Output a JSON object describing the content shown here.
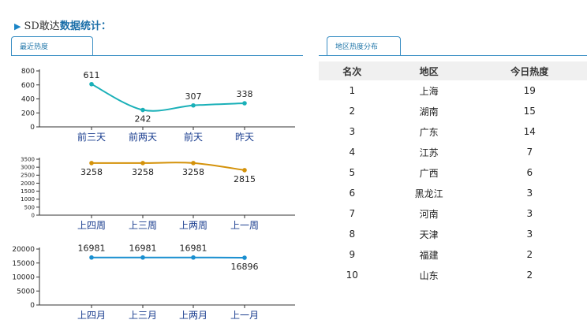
{
  "header": {
    "prefix": "SD敢达",
    "title": "数据统计："
  },
  "tabs": {
    "left": "最近热度",
    "right": "地区热度分布"
  },
  "charts": [
    {
      "type": "line",
      "color": "#1ab0b8",
      "y_ticks": [
        0,
        200,
        400,
        600,
        800
      ],
      "ylim": [
        0,
        800
      ],
      "categories": [
        "前三天",
        "前两天",
        "前天",
        "昨天"
      ],
      "values": [
        611,
        242,
        307,
        338
      ]
    },
    {
      "type": "line",
      "color": "#d4920a",
      "y_ticks": [
        0,
        500,
        1000,
        1500,
        2000,
        2500,
        3000,
        3500
      ],
      "ylim": [
        0,
        3500
      ],
      "categories": [
        "上四周",
        "上三周",
        "上两周",
        "上一周"
      ],
      "values": [
        3258,
        3258,
        3258,
        2815
      ]
    },
    {
      "type": "line",
      "color": "#1a8fd0",
      "y_ticks": [
        0,
        5000,
        10000,
        15000,
        20000
      ],
      "ylim": [
        0,
        20000
      ],
      "categories": [
        "上四月",
        "上三月",
        "上两月",
        "上一月"
      ],
      "values": [
        16981,
        16981,
        16981,
        16896
      ]
    }
  ],
  "ranking": {
    "headers": [
      "名次",
      "地区",
      "今日热度"
    ],
    "rows": [
      [
        "1",
        "上海",
        "19"
      ],
      [
        "2",
        "湖南",
        "15"
      ],
      [
        "3",
        "广东",
        "14"
      ],
      [
        "4",
        "江苏",
        "7"
      ],
      [
        "5",
        "广西",
        "6"
      ],
      [
        "6",
        "黑龙江",
        "3"
      ],
      [
        "7",
        "河南",
        "3"
      ],
      [
        "8",
        "天津",
        "3"
      ],
      [
        "9",
        "福建",
        "2"
      ],
      [
        "10",
        "山东",
        "2"
      ]
    ]
  }
}
